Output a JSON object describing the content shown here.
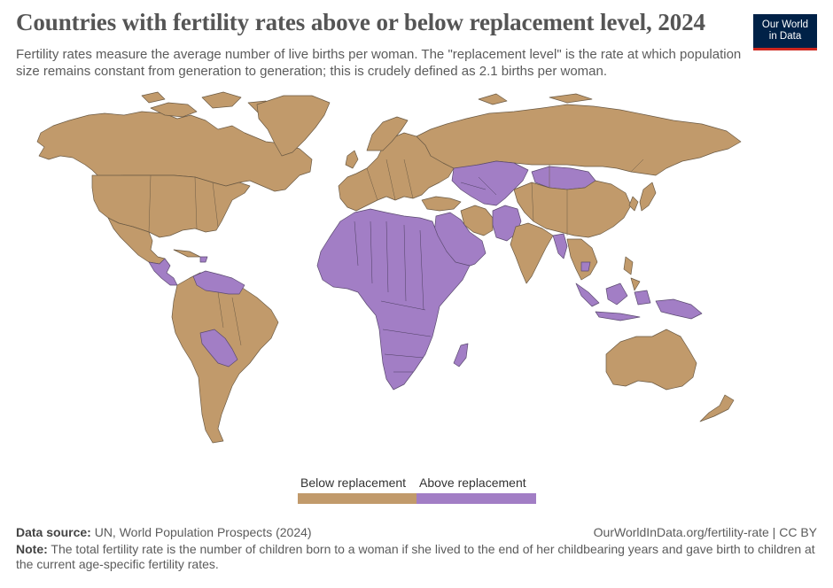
{
  "title": "Countries with fertility rates above or below replacement level, 2024",
  "subtitle": "Fertility rates measure the average number of live births per woman. The \"replacement level\" is the rate at which population size remains constant from generation to generation; this is crudely defined as 2.1 births per woman.",
  "logo": {
    "line1": "Our World",
    "line2": "in Data"
  },
  "legend": [
    {
      "label": "Below replacement",
      "color": "#c19a6b"
    },
    {
      "label": "Above replacement",
      "color": "#a27ec5"
    }
  ],
  "footer": {
    "source_label": "Data source:",
    "source_text": "UN, World Population Prospects (2024)",
    "url": "OurWorldInData.org/fertility-rate | CC BY",
    "note_label": "Note:",
    "note_text": "The total fertility rate is the number of children born to a woman if she lived to the end of her childbearing years and gave birth to children at the current age-specific fertility rates."
  },
  "map_data": {
    "year": 2024,
    "categories": [
      "Below replacement",
      "Above replacement"
    ],
    "regions": [
      {
        "name": "Canada",
        "category": "Below replacement"
      },
      {
        "name": "Alaska",
        "category": "Below replacement"
      },
      {
        "name": "Greenland",
        "category": "Below replacement"
      },
      {
        "name": "United States",
        "category": "Below replacement"
      },
      {
        "name": "Mexico",
        "category": "Below replacement"
      },
      {
        "name": "Central America",
        "category": "Above replacement"
      },
      {
        "name": "Haiti",
        "category": "Above replacement"
      },
      {
        "name": "Venezuela",
        "category": "Above replacement"
      },
      {
        "name": "Guyana",
        "category": "Above replacement"
      },
      {
        "name": "Bolivia",
        "category": "Above replacement"
      },
      {
        "name": "Paraguay",
        "category": "Above replacement"
      },
      {
        "name": "South America",
        "category": "Below replacement"
      },
      {
        "name": "Europe",
        "category": "Below replacement"
      },
      {
        "name": "Russia",
        "category": "Below replacement"
      },
      {
        "name": "Kazakhstan",
        "category": "Above replacement"
      },
      {
        "name": "Central Asia",
        "category": "Above replacement"
      },
      {
        "name": "Mongolia",
        "category": "Above replacement"
      },
      {
        "name": "China",
        "category": "Below replacement"
      },
      {
        "name": "India",
        "category": "Below replacement"
      },
      {
        "name": "Iran",
        "category": "Below replacement"
      },
      {
        "name": "Turkey",
        "category": "Below replacement"
      },
      {
        "name": "Arabian Peninsula",
        "category": "Above replacement"
      },
      {
        "name": "Afghanistan",
        "category": "Above replacement"
      },
      {
        "name": "Pakistan",
        "category": "Above replacement"
      },
      {
        "name": "North Africa",
        "category": "Above replacement"
      },
      {
        "name": "Sub-Saharan Africa",
        "category": "Above replacement"
      },
      {
        "name": "Madagascar",
        "category": "Above replacement"
      },
      {
        "name": "Myanmar",
        "category": "Above replacement"
      },
      {
        "name": "Cambodia",
        "category": "Above replacement"
      },
      {
        "name": "Thailand",
        "category": "Below replacement"
      },
      {
        "name": "Vietnam",
        "category": "Below replacement"
      },
      {
        "name": "Indonesia",
        "category": "Above replacement"
      },
      {
        "name": "Papua New Guinea",
        "category": "Above replacement"
      },
      {
        "name": "Philippines",
        "category": "Below replacement"
      },
      {
        "name": "Japan",
        "category": "Below replacement"
      },
      {
        "name": "Korea",
        "category": "Below replacement"
      },
      {
        "name": "Australia",
        "category": "Below replacement"
      },
      {
        "name": "New Zealand",
        "category": "Below replacement"
      }
    ]
  }
}
